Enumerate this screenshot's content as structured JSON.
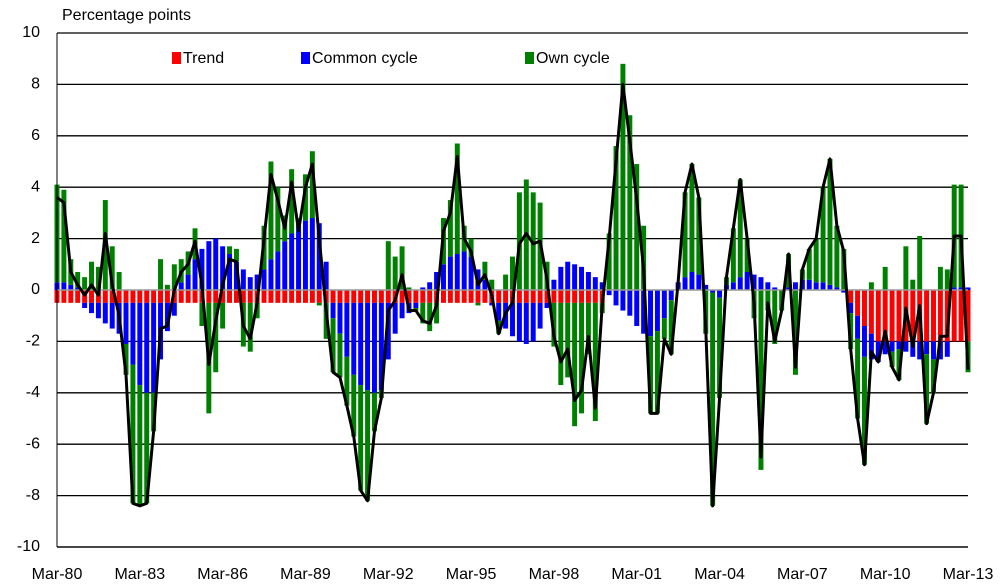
{
  "chart_data": {
    "type": "bar",
    "y_axis_label": "Percentage points",
    "categories": [
      "Mar-80",
      null,
      null,
      null,
      null,
      null,
      null,
      null,
      null,
      null,
      null,
      null,
      "Mar-83",
      null,
      null,
      null,
      null,
      null,
      null,
      null,
      null,
      null,
      null,
      null,
      "Mar-86",
      null,
      null,
      null,
      null,
      null,
      null,
      null,
      null,
      null,
      null,
      null,
      "Mar-89",
      null,
      null,
      null,
      null,
      null,
      null,
      null,
      null,
      null,
      null,
      null,
      "Mar-92",
      null,
      null,
      null,
      null,
      null,
      null,
      null,
      null,
      null,
      null,
      null,
      "Mar-95",
      null,
      null,
      null,
      null,
      null,
      null,
      null,
      null,
      null,
      null,
      null,
      "Mar-98",
      null,
      null,
      null,
      null,
      null,
      null,
      null,
      null,
      null,
      null,
      null,
      "Mar-01",
      null,
      null,
      null,
      null,
      null,
      null,
      null,
      null,
      null,
      null,
      null,
      "Mar-04",
      null,
      null,
      null,
      null,
      null,
      null,
      null,
      null,
      null,
      null,
      null,
      "Mar-07",
      null,
      null,
      null,
      null,
      null,
      null,
      null,
      null,
      null,
      null,
      null,
      "Mar-10",
      null,
      null,
      null,
      null,
      null,
      null,
      null,
      null,
      null,
      null,
      null,
      "Mar-13"
    ],
    "series": [
      {
        "name": "Trend",
        "color": "#ff0000",
        "values": [
          -0.5,
          -0.5,
          -0.5,
          -0.5,
          -0.5,
          -0.5,
          -0.5,
          -0.5,
          -0.5,
          -0.5,
          -0.5,
          -0.5,
          -0.5,
          -0.5,
          -0.5,
          -0.5,
          -0.5,
          -0.5,
          -0.5,
          -0.5,
          -0.5,
          -0.5,
          -0.5,
          -0.5,
          -0.5,
          -0.5,
          -0.5,
          -0.5,
          -0.5,
          -0.5,
          -0.5,
          -0.5,
          -0.5,
          -0.5,
          -0.5,
          -0.5,
          -0.5,
          -0.5,
          -0.5,
          -0.5,
          -0.5,
          -0.5,
          -0.5,
          -0.5,
          -0.5,
          -0.5,
          -0.5,
          -0.5,
          -0.5,
          -0.5,
          -0.5,
          -0.5,
          -0.5,
          -0.5,
          -0.5,
          -0.5,
          -0.5,
          -0.5,
          -0.5,
          -0.5,
          -0.5,
          -0.5,
          -0.5,
          -0.5,
          -0.5,
          -0.5,
          -0.5,
          -0.5,
          -0.5,
          -0.5,
          -0.5,
          -0.5,
          -0.5,
          -0.5,
          -0.5,
          -0.5,
          -0.5,
          -0.5,
          -0.5,
          -0.5,
          0,
          0,
          0,
          0,
          0,
          0,
          0,
          0,
          0,
          0,
          0,
          0,
          0,
          0,
          0,
          0,
          0,
          0,
          0,
          0,
          0,
          0,
          0,
          0,
          0,
          0,
          0,
          0,
          0,
          0,
          0,
          0,
          0,
          0,
          0,
          -0.5,
          -1.0,
          -1.4,
          -1.7,
          -2,
          -2,
          -2,
          -2,
          -2,
          -2,
          -2,
          -2,
          -2,
          -2,
          -2,
          -2,
          -2,
          -2
        ]
      },
      {
        "name": "Common cycle",
        "color": "#0000ff",
        "values": [
          0.3,
          0.3,
          0.2,
          0.1,
          -0.2,
          -0.4,
          -0.6,
          -0.8,
          -1.0,
          -1.2,
          -1.6,
          -2.4,
          -3.2,
          -3.5,
          -3.5,
          -2.2,
          -1.1,
          -0.5,
          0.3,
          0.6,
          1.2,
          1.6,
          1.9,
          2.0,
          1.7,
          1.4,
          1.1,
          0.8,
          0.5,
          0.6,
          0.8,
          1.2,
          1.5,
          1.9,
          2.2,
          2.5,
          2.7,
          2.8,
          2.6,
          1.1,
          -0.6,
          -1.2,
          -2.1,
          -2.8,
          -3.2,
          -3.4,
          -3.5,
          -3.4,
          -2.2,
          -1.2,
          -0.6,
          -0.4,
          -0.2,
          0.1,
          0.3,
          0.7,
          1.0,
          1.3,
          1.4,
          1.5,
          1.3,
          0.8,
          0.4,
          -0.1,
          -0.7,
          -1.0,
          -1.3,
          -1.5,
          -1.6,
          -1.5,
          -1.0,
          -0.2,
          0.4,
          0.9,
          1.1,
          1.0,
          0.9,
          0.7,
          0.5,
          0.3,
          -0.2,
          -0.6,
          -0.8,
          -1.0,
          -1.4,
          -1.7,
          -1.8,
          -1.6,
          -1.1,
          -0.4,
          0.3,
          0.5,
          0.7,
          0.6,
          0.2,
          -0.1,
          -0.3,
          0.2,
          0.3,
          0.5,
          0.7,
          0.6,
          0.5,
          0.3,
          0.1,
          0,
          0.1,
          0.3,
          0.4,
          0.4,
          0.3,
          0.3,
          0.2,
          0.1,
          -0.1,
          -0.4,
          -0.9,
          -1.2,
          -1.0,
          -0.8,
          -0.5,
          -0.4,
          -0.3,
          -0.4,
          -0.6,
          -0.7,
          -0.5,
          -0.7,
          -0.7,
          -0.6,
          0.1,
          0.1,
          0.1
        ]
      },
      {
        "name": "Own cycle",
        "color": "#008000",
        "values": [
          3.8,
          3.6,
          1.0,
          0.6,
          0.5,
          1.1,
          0.9,
          3.5,
          1.7,
          0.7,
          -1.2,
          -5.4,
          -4.7,
          -4.3,
          -1.5,
          1.2,
          0.2,
          1.0,
          0.9,
          0.9,
          1.2,
          -0.9,
          -4.3,
          -2.7,
          -1.0,
          0.3,
          0.5,
          -1.7,
          -1.9,
          -0.6,
          1.7,
          3.8,
          2.5,
          1.0,
          2.5,
          0.3,
          1.8,
          2.6,
          -0.1,
          -1.4,
          -2.1,
          -1.7,
          -1.9,
          -2.4,
          -4.1,
          -4.3,
          -1.5,
          -0.3,
          1.9,
          1.3,
          1.7,
          0.1,
          -0.1,
          -0.8,
          -1.1,
          -0.8,
          1.8,
          2.2,
          4.3,
          1.0,
          0.7,
          -0.1,
          0.7,
          0.4,
          -0.5,
          0.6,
          1.3,
          3.8,
          4.3,
          3.8,
          3.4,
          1.1,
          -1.7,
          -3.2,
          -2.9,
          -4.8,
          -4.3,
          -2.0,
          -4.6,
          -0.4,
          2.2,
          5.6,
          8.8,
          6.8,
          4.9,
          2.5,
          -3.0,
          -3.2,
          -0.8,
          -2.1,
          0.0,
          3.3,
          4.2,
          3.0,
          -1.7,
          -8.3,
          -3.9,
          0.3,
          2.1,
          3.8,
          1.3,
          -1.1,
          -7.0,
          -0.8,
          -2.1,
          -0.8,
          1.3,
          -3.3,
          0.4,
          1.2,
          1.7,
          3.7,
          4.9,
          2.4,
          1.6,
          -1.4,
          -3.1,
          -4.2,
          0.3,
          0.0,
          0.9,
          -0.6,
          -1.2,
          1.7,
          0.4,
          2.1,
          -2.7,
          -1.3,
          0.9,
          0.8,
          4.0,
          4.0,
          -1.2
        ]
      },
      {
        "type": "line",
        "color": "#000000",
        "values": [
          3.6,
          3.4,
          0.7,
          0.2,
          -0.2,
          0.2,
          -0.2,
          2.2,
          0.2,
          -1.0,
          -3.3,
          -8.3,
          -8.4,
          -8.3,
          -5.5,
          -1.5,
          -1.4,
          0.0,
          0.7,
          1.0,
          1.9,
          0.2,
          -2.9,
          -1.2,
          0.2,
          1.2,
          1.1,
          -1.4,
          -1.9,
          -0.5,
          2.0,
          4.5,
          3.5,
          2.4,
          4.2,
          2.3,
          4.0,
          4.9,
          2.0,
          -0.8,
          -3.2,
          -3.4,
          -4.5,
          -5.7,
          -7.8,
          -8.2,
          -5.5,
          -4.2,
          -0.8,
          -0.4,
          0.6,
          -0.8,
          -0.8,
          -1.2,
          -1.3,
          -0.6,
          2.3,
          3.0,
          5.2,
          2.0,
          1.5,
          0.2,
          0.6,
          -0.2,
          -1.7,
          -0.9,
          -0.5,
          1.8,
          2.2,
          1.8,
          1.9,
          0.4,
          -1.8,
          -2.8,
          -2.3,
          -4.3,
          -3.9,
          -1.8,
          -4.6,
          -0.6,
          2.0,
          5.0,
          8.0,
          5.8,
          3.5,
          0.8,
          -4.8,
          -4.8,
          -1.9,
          -2.5,
          0.3,
          3.8,
          4.9,
          3.6,
          -1.5,
          -8.4,
          -4.2,
          0.5,
          2.4,
          4.3,
          2.0,
          -0.5,
          -6.5,
          -0.5,
          -2.0,
          -0.8,
          1.4,
          -3.0,
          0.8,
          1.6,
          2.0,
          4.0,
          5.1,
          2.5,
          1.5,
          -2.3,
          -5.0,
          -6.8,
          -2.4,
          -2.8,
          -1.6,
          -3.0,
          -3.5,
          -0.7,
          -2.2,
          -0.6,
          -5.2,
          -4.0,
          -1.8,
          -1.8,
          2.1,
          2.1,
          -3.1
        ]
      }
    ],
    "ylim": [
      -10,
      10
    ],
    "yticks": [
      -10,
      -8,
      -6,
      -4,
      -2,
      0,
      2,
      4,
      6,
      8,
      10
    ],
    "grid": true,
    "stacked": true,
    "legend": "top"
  }
}
